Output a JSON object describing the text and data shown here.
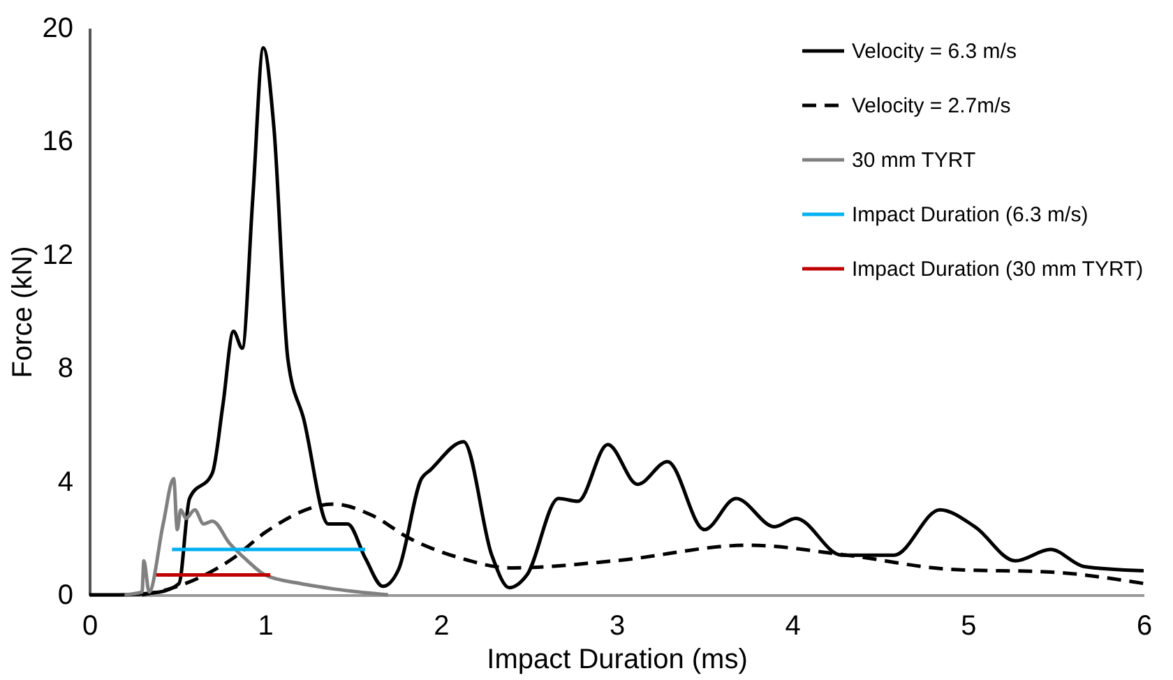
{
  "chart_data": {
    "type": "line",
    "xlabel": "Impact Duration (ms)",
    "ylabel": "Force (kN)",
    "xlim": [
      0,
      6
    ],
    "ylim": [
      0,
      20
    ],
    "xticks": [
      0,
      1,
      2,
      3,
      4,
      5,
      6
    ],
    "yticks": [
      0,
      4,
      8,
      12,
      16,
      20
    ],
    "grid": false,
    "legend": "top right",
    "marker": "none",
    "series": [
      {
        "name": "Velocity = 6.3 m/s",
        "color": "#000000",
        "line_style": "solid",
        "x": [
          0,
          0.17,
          0.4,
          0.51,
          0.57,
          0.7,
          0.76,
          0.82,
          0.87,
          0.93,
          0.99,
          1.05,
          1.13,
          1.22,
          1.36,
          1.47,
          1.57,
          1.67,
          1.76,
          1.89,
          1.94,
          2.13,
          2.29,
          2.39,
          2.49,
          2.67,
          2.78,
          2.95,
          3.12,
          3.29,
          3.5,
          3.68,
          3.9,
          4.02,
          4.28,
          4.58,
          4.84,
          5.04,
          5.27,
          5.47,
          5.66,
          6.0
        ],
        "values": [
          0,
          0,
          0.1,
          0.4,
          3.4,
          4.3,
          6.7,
          9.3,
          8.7,
          14,
          19.3,
          16.5,
          8.3,
          6.2,
          2.5,
          2.5,
          1.3,
          0.3,
          0.9,
          4.1,
          4.4,
          5.4,
          1.4,
          0.25,
          0.7,
          3.4,
          3.3,
          5.3,
          3.9,
          4.7,
          2.3,
          3.4,
          2.4,
          2.7,
          1.4,
          1.4,
          3.0,
          2.4,
          1.2,
          1.6,
          1.0,
          0.85
        ]
      },
      {
        "name": "Velocity = 2.7m/s",
        "color": "#000000",
        "line_style": "dashed",
        "x": [
          0.3,
          0.45,
          0.82,
          1.0,
          1.39,
          1.61,
          1.82,
          2.11,
          2.4,
          2.99,
          3.75,
          4.31,
          4.9,
          5.48,
          6.0
        ],
        "values": [
          0,
          0.2,
          1.3,
          2.2,
          3.2,
          2.8,
          2.0,
          1.3,
          0.95,
          1.2,
          1.75,
          1.4,
          0.9,
          0.8,
          0.4
        ]
      },
      {
        "name": "30 mm TYRT",
        "color": "#808080",
        "line_style": "solid",
        "x": [
          0.2,
          0.3,
          0.31,
          0.34,
          0.42,
          0.48,
          0.5,
          0.52,
          0.55,
          0.6,
          0.65,
          0.7,
          0.8,
          0.9,
          1.0,
          1.2,
          1.4,
          1.7
        ],
        "values": [
          0,
          0.1,
          1.2,
          0.1,
          2.5,
          4.1,
          2.3,
          3.0,
          2.7,
          3.0,
          2.5,
          2.6,
          1.8,
          1.2,
          0.7,
          0.4,
          0.2,
          0
        ]
      },
      {
        "name": "Impact Duration (6.3 m/s)",
        "color": "#00b0f0",
        "line_style": "solid",
        "x": [
          0.47,
          1.57
        ],
        "values": [
          1.6,
          1.6
        ]
      },
      {
        "name": "Impact Duration (30 mm TYRT)",
        "color": "#c00000",
        "line_style": "solid",
        "x": [
          0.38,
          1.03
        ],
        "values": [
          0.7,
          0.7
        ]
      }
    ]
  }
}
